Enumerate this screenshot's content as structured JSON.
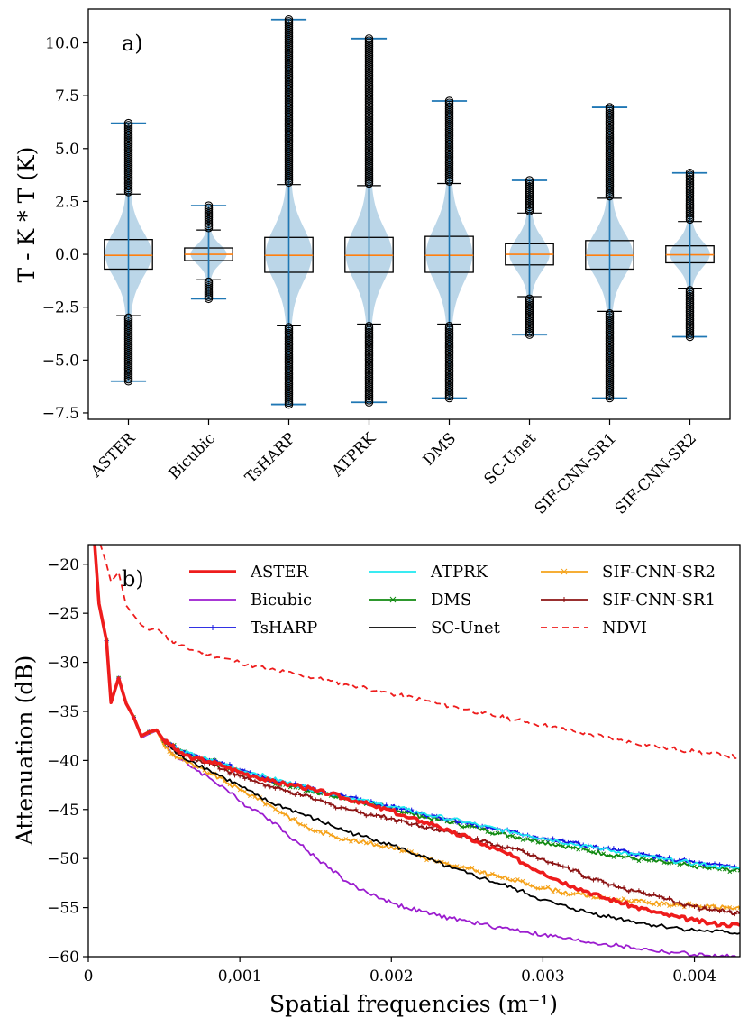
{
  "chart_data": [
    {
      "type": "violin-box",
      "panel_label": "a)",
      "ylabel": "T - K * T (K)",
      "ylim": [
        -7.8,
        11.6
      ],
      "yticks": [
        "−7.5",
        "−5.0",
        "−2.5",
        "0.0",
        "2.5",
        "5.0",
        "7.5",
        "10.0"
      ],
      "yticks_values": [
        -7.5,
        -5.0,
        -2.5,
        0.0,
        2.5,
        5.0,
        7.5,
        10.0
      ],
      "categories": [
        "ASTER",
        "Bicubic",
        "TsHARP",
        "ATPRK",
        "DMS",
        "SC-Unet",
        "SIF-CNN-SR1",
        "SIF-CNN-SR2"
      ],
      "stats": [
        {
          "min": -6.0,
          "max": 6.2,
          "q1": -0.7,
          "q3": 0.7,
          "median": -0.05,
          "whisker_low": -2.9,
          "whisker_high": 2.85,
          "violin_width": 0.58
        },
        {
          "min": -2.1,
          "max": 2.3,
          "q1": -0.3,
          "q3": 0.3,
          "median": 0.0,
          "whisker_low": -1.2,
          "whisker_high": 1.15,
          "violin_width": 0.45
        },
        {
          "min": -7.1,
          "max": 11.1,
          "q1": -0.85,
          "q3": 0.8,
          "median": -0.05,
          "whisker_low": -3.35,
          "whisker_high": 3.3,
          "violin_width": 0.58
        },
        {
          "min": -7.0,
          "max": 10.2,
          "q1": -0.85,
          "q3": 0.8,
          "median": -0.05,
          "whisker_low": -3.3,
          "whisker_high": 3.25,
          "violin_width": 0.58
        },
        {
          "min": -6.8,
          "max": 7.25,
          "q1": -0.85,
          "q3": 0.85,
          "median": -0.05,
          "whisker_low": -3.3,
          "whisker_high": 3.35,
          "violin_width": 0.58
        },
        {
          "min": -3.8,
          "max": 3.5,
          "q1": -0.5,
          "q3": 0.5,
          "median": 0.0,
          "whisker_low": -2.0,
          "whisker_high": 1.95,
          "violin_width": 0.5
        },
        {
          "min": -6.8,
          "max": 6.95,
          "q1": -0.7,
          "q3": 0.65,
          "median": -0.05,
          "whisker_low": -2.7,
          "whisker_high": 2.65,
          "violin_width": 0.58
        },
        {
          "min": -3.9,
          "max": 3.85,
          "q1": -0.4,
          "q3": 0.4,
          "median": -0.02,
          "whisker_low": -1.6,
          "whisker_high": 1.55,
          "violin_width": 0.5
        }
      ],
      "colors": {
        "violin": "#1f77b4",
        "median": "#ff7f0e",
        "box": "#000000"
      }
    },
    {
      "type": "line",
      "panel_label": "b)",
      "xlabel": "Spatial frequencies (m⁻¹)",
      "ylabel": "Attenuation (dB)",
      "xlim": [
        0,
        0.0043
      ],
      "ylim": [
        -60,
        -18
      ],
      "xticks": [
        "0",
        "0,001",
        "0.002",
        "0.003",
        "0.004"
      ],
      "xticks_values": [
        0,
        0.001,
        0.002,
        0.003,
        0.004
      ],
      "yticks": [
        "−60",
        "−55",
        "−50",
        "−45",
        "−40",
        "−35",
        "−30",
        "−25",
        "−20"
      ],
      "yticks_values": [
        -60,
        -55,
        -50,
        -45,
        -40,
        -35,
        -30,
        -25,
        -20
      ],
      "legend_position": "top",
      "x": [
        4e-05,
        7e-05,
        0.00012,
        0.00015,
        0.0002,
        0.00025,
        0.0003,
        0.00035,
        0.0004,
        0.00045,
        0.0005,
        0.00055,
        0.0006,
        0.0007,
        0.0008,
        0.0009,
        0.001,
        0.0011,
        0.0012,
        0.0013,
        0.0014,
        0.0015,
        0.0016,
        0.0017,
        0.0018,
        0.0019,
        0.002,
        0.0021,
        0.0022,
        0.0023,
        0.0024,
        0.0025,
        0.0026,
        0.0027,
        0.0028,
        0.0029,
        0.003,
        0.0031,
        0.0032,
        0.0033,
        0.0034,
        0.0035,
        0.0036,
        0.0037,
        0.0038,
        0.0039,
        0.004,
        0.0041,
        0.0042,
        0.0043
      ],
      "series": [
        {
          "name": "ASTER",
          "color": "#ee1c1c",
          "width": 3.6,
          "dash": "",
          "marker": "none",
          "values": [
            -17.5,
            -24,
            -27.8,
            -34.1,
            -31.6,
            -34.2,
            -35.6,
            -37.5,
            -37.1,
            -36.9,
            -38,
            -38.5,
            -39.2,
            -39.8,
            -40.1,
            -40.6,
            -41.2,
            -41.6,
            -42.1,
            -42.4,
            -42.6,
            -43.1,
            -43.4,
            -43.9,
            -44.2,
            -44.8,
            -45.1,
            -45.8,
            -46.2,
            -46.6,
            -47.4,
            -47.8,
            -48.6,
            -49.1,
            -49.8,
            -50.7,
            -51.4,
            -52.2,
            -52.8,
            -53.4,
            -54.0,
            -54.4,
            -54.9,
            -55.3,
            -55.7,
            -56.0,
            -56.3,
            -56.6,
            -56.7,
            -56.8
          ]
        },
        {
          "name": "Bicubic",
          "color": "#9b1ccf",
          "width": 1.8,
          "dash": "",
          "marker": "none",
          "values": [
            -17.5,
            -24,
            -27.8,
            -34.1,
            -31.6,
            -34.2,
            -35.6,
            -37.7,
            -37.3,
            -37.0,
            -38.4,
            -39.2,
            -39.9,
            -40.8,
            -41.8,
            -42.8,
            -44.2,
            -45.0,
            -46.0,
            -47.3,
            -48.6,
            -49.9,
            -51.0,
            -52.3,
            -53.2,
            -53.8,
            -54.5,
            -55.0,
            -55.4,
            -55.8,
            -56.1,
            -56.4,
            -56.7,
            -57.0,
            -57.2,
            -57.5,
            -57.8,
            -58.0,
            -58.3,
            -58.5,
            -58.7,
            -58.9,
            -59.1,
            -59.3,
            -59.5,
            -59.6,
            -59.8,
            -59.9,
            -60.0,
            -60.0
          ]
        },
        {
          "name": "TsHARP",
          "color": "#1414e0",
          "width": 1.8,
          "dash": "",
          "marker": "plus",
          "values": [
            -17.5,
            -24,
            -27.8,
            -34.1,
            -31.6,
            -34.2,
            -35.6,
            -37.5,
            -37.1,
            -36.9,
            -38,
            -38.4,
            -39.0,
            -39.5,
            -40.0,
            -40.4,
            -41.0,
            -41.5,
            -42.0,
            -42.3,
            -42.6,
            -43.0,
            -43.4,
            -43.7,
            -44.0,
            -44.4,
            -44.7,
            -45.0,
            -45.4,
            -45.7,
            -46.0,
            -46.4,
            -46.7,
            -47.0,
            -47.3,
            -47.6,
            -47.9,
            -48.2,
            -48.4,
            -48.7,
            -49.0,
            -49.2,
            -49.5,
            -49.7,
            -50.0,
            -50.2,
            -50.4,
            -50.6,
            -50.8,
            -50.9
          ]
        },
        {
          "name": "ATPRK",
          "color": "#1ee8f0",
          "width": 1.8,
          "dash": "",
          "marker": "none",
          "values": [
            -17.5,
            -24,
            -27.8,
            -34.1,
            -31.6,
            -34.2,
            -35.6,
            -37.5,
            -37.1,
            -36.9,
            -38,
            -38.4,
            -39.0,
            -39.5,
            -40.0,
            -40.4,
            -41.0,
            -41.3,
            -41.8,
            -42.2,
            -42.6,
            -43.0,
            -43.4,
            -43.7,
            -44.0,
            -44.4,
            -44.7,
            -45.0,
            -45.4,
            -45.7,
            -46.0,
            -46.3,
            -46.7,
            -47.0,
            -47.3,
            -47.6,
            -47.9,
            -48.2,
            -48.5,
            -48.8,
            -49.0,
            -49.3,
            -49.6,
            -49.8,
            -50.1,
            -50.3,
            -50.5,
            -50.7,
            -50.9,
            -51.0
          ]
        },
        {
          "name": "DMS",
          "color": "#108a10",
          "width": 1.8,
          "dash": "",
          "marker": "x",
          "values": [
            -17.5,
            -24,
            -27.8,
            -34.1,
            -31.6,
            -34.2,
            -35.6,
            -37.5,
            -37.1,
            -36.9,
            -38,
            -38.4,
            -39.0,
            -39.5,
            -40.0,
            -40.5,
            -41.1,
            -41.6,
            -42.1,
            -42.5,
            -42.8,
            -43.2,
            -43.6,
            -43.9,
            -44.2,
            -44.6,
            -44.9,
            -45.3,
            -45.7,
            -46.0,
            -46.3,
            -46.7,
            -47.0,
            -47.4,
            -47.7,
            -48.0,
            -48.3,
            -48.6,
            -48.9,
            -49.2,
            -49.5,
            -49.7,
            -50.0,
            -50.2,
            -50.4,
            -50.6,
            -50.8,
            -51.0,
            -51.1,
            -51.2
          ]
        },
        {
          "name": "SC-Unet",
          "color": "#000000",
          "width": 1.8,
          "dash": "",
          "marker": "none",
          "values": [
            -17.5,
            -24,
            -27.8,
            -34.1,
            -31.6,
            -34.2,
            -35.6,
            -37.5,
            -37.1,
            -36.9,
            -38,
            -38.8,
            -39.5,
            -40.2,
            -41.0,
            -41.8,
            -42.6,
            -43.5,
            -44.3,
            -44.8,
            -45.4,
            -46.0,
            -46.6,
            -47.2,
            -47.7,
            -48.1,
            -48.6,
            -49.2,
            -49.8,
            -50.4,
            -51.0,
            -51.5,
            -52.0,
            -52.5,
            -53.0,
            -53.6,
            -54.2,
            -54.7,
            -55.1,
            -55.5,
            -55.8,
            -56.1,
            -56.4,
            -56.7,
            -56.9,
            -57.1,
            -57.3,
            -57.4,
            -57.5,
            -57.6
          ]
        },
        {
          "name": "SIF-CNN-SR2",
          "color": "#f5a21a",
          "width": 1.8,
          "dash": "",
          "marker": "x",
          "values": [
            -17.5,
            -24,
            -27.8,
            -34.1,
            -31.6,
            -34.2,
            -35.6,
            -37.6,
            -37.2,
            -37.0,
            -38.5,
            -39.3,
            -39.8,
            -40.6,
            -41.3,
            -42.1,
            -43.0,
            -43.7,
            -44.6,
            -45.5,
            -46.5,
            -47.2,
            -47.6,
            -48.0,
            -48.3,
            -48.6,
            -48.8,
            -49.2,
            -49.8,
            -50.3,
            -50.8,
            -51.0,
            -51.4,
            -51.8,
            -52.2,
            -52.6,
            -53.0,
            -53.3,
            -53.6,
            -53.8,
            -54.0,
            -54.2,
            -54.3,
            -54.5,
            -54.6,
            -54.7,
            -54.8,
            -54.9,
            -55.0,
            -55.0
          ]
        },
        {
          "name": "SIF-CNN-SR1",
          "color": "#8b1212",
          "width": 1.8,
          "dash": "",
          "marker": "plus",
          "values": [
            -17.5,
            -24,
            -27.8,
            -34.1,
            -31.6,
            -34.2,
            -35.6,
            -37.5,
            -37.1,
            -36.9,
            -38,
            -38.5,
            -39.2,
            -39.8,
            -40.3,
            -40.9,
            -41.6,
            -42.1,
            -42.7,
            -43.1,
            -43.5,
            -44.0,
            -44.5,
            -44.9,
            -45.3,
            -45.6,
            -45.9,
            -46.3,
            -46.7,
            -47.0,
            -47.4,
            -47.8,
            -48.2,
            -48.6,
            -49.0,
            -49.5,
            -50.0,
            -50.6,
            -51.2,
            -51.9,
            -52.4,
            -52.9,
            -53.3,
            -53.7,
            -54.1,
            -54.5,
            -54.9,
            -55.2,
            -55.4,
            -55.6
          ]
        },
        {
          "name": "NDVI",
          "color": "#ee1c1c",
          "width": 1.8,
          "dash": "7,5",
          "marker": "none",
          "values": [
            -17.0,
            -17.5,
            -20.0,
            -21.8,
            -20.8,
            -24.2,
            -25.2,
            -26.2,
            -26.7,
            -26.5,
            -27.2,
            -27.8,
            -28.3,
            -28.8,
            -29.2,
            -29.6,
            -30.0,
            -30.4,
            -30.7,
            -31.0,
            -31.3,
            -31.6,
            -31.9,
            -32.2,
            -32.5,
            -32.9,
            -33.2,
            -33.5,
            -33.8,
            -34.2,
            -34.5,
            -34.8,
            -35.2,
            -35.5,
            -35.8,
            -36.1,
            -36.4,
            -36.7,
            -37.0,
            -37.3,
            -37.6,
            -37.9,
            -38.2,
            -38.4,
            -38.7,
            -38.9,
            -39.1,
            -39.3,
            -39.5,
            -39.7
          ]
        }
      ]
    }
  ]
}
